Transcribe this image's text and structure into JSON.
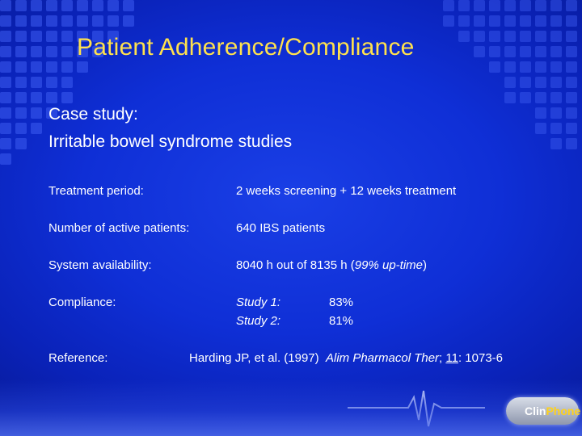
{
  "slide": {
    "title": "Patient Adherence/Compliance",
    "case_line1": "Case study:",
    "case_line2": "Irritable bowel syndrome studies",
    "rows": {
      "treatment": {
        "label": "Treatment period:",
        "value": "2 weeks screening + 12 weeks treatment"
      },
      "patients": {
        "label": "Number of active patients:",
        "value": "640 IBS patients"
      },
      "availability": {
        "label": "System availability:",
        "value_main": "8040 h out of 8135 h (",
        "value_italic": "99% up-time",
        "value_end": ")"
      },
      "compliance": {
        "label": "Compliance:",
        "study1_label": "Study 1:",
        "study1_value": "83%",
        "study2_label": "Study 2:",
        "study2_value": "81%"
      },
      "reference": {
        "label": "Reference:",
        "authors": "Harding JP, et al. (1997)",
        "journal": "Alim Pharmacol Ther",
        "sep": ";",
        "volume": "11",
        "pages": ": 1073-6"
      }
    },
    "logo": {
      "part1": "Clin",
      "part2": "Phone"
    },
    "colors": {
      "title": "#ffe14d",
      "background": "#0f2fd6",
      "grid": "#4d6cff"
    }
  }
}
